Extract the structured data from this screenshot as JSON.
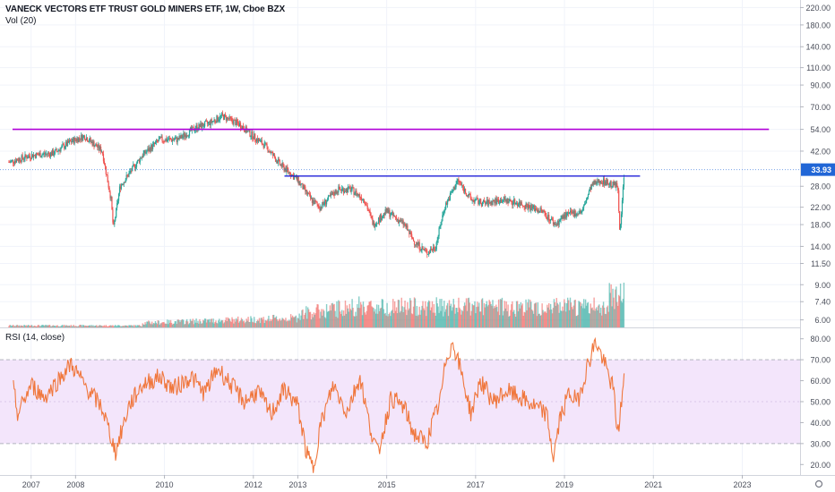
{
  "header": {
    "title": "VANECK VECTORS ETF TRUST GOLD MINERS ETF, 1W, Cboe BZX",
    "volume_label": "Vol (20)"
  },
  "rsi_pane": {
    "label": "RSI (14, close)"
  },
  "last_price": "33.93",
  "colors": {
    "up": "#26a69a",
    "down": "#ef5350",
    "resistance_line": "#b000d8",
    "breakout_line": "#1f1fd8",
    "rsi_line": "#f0773d",
    "rsi_band": "#f3e5fb",
    "price_tag": "#2166d6"
  },
  "price_axis": {
    "scale": "log",
    "ticks": [
      "220.00",
      "180.00",
      "140.00",
      "110.00",
      "90.00",
      "70.00",
      "54.00",
      "42.00",
      "33.93",
      "28.00",
      "22.00",
      "18.00",
      "14.00",
      "11.50",
      "9.00",
      "7.40",
      "6.00"
    ]
  },
  "rsi_axis": {
    "ticks": [
      "80.00",
      "70.00",
      "60.00",
      "50.00",
      "40.00",
      "30.00",
      "20.00"
    ],
    "band": [
      30,
      70
    ]
  },
  "time_axis": {
    "ticks": [
      "2007",
      "2008",
      "2010",
      "2012",
      "2013",
      "2015",
      "2017",
      "2019",
      "2021",
      "2023"
    ]
  },
  "chart_data": [
    {
      "type": "line",
      "title": "",
      "scale": "log",
      "ylim": [
        5.5,
        240
      ],
      "xlim": [
        2006.3,
        2024.3
      ],
      "approx_weekly_close_path": {
        "x": [
          2006.5,
          2007.0,
          2007.5,
          2007.9,
          2008.2,
          2008.6,
          2008.8,
          2008.85,
          2009.0,
          2009.5,
          2009.9,
          2010.3,
          2010.7,
          2011.0,
          2011.3,
          2011.7,
          2011.9,
          2012.3,
          2012.6,
          2012.8,
          2013.0,
          2013.3,
          2013.5,
          2013.9,
          2014.2,
          2014.5,
          2014.7,
          2015.0,
          2015.4,
          2015.6,
          2015.9,
          2016.1,
          2016.3,
          2016.6,
          2016.9,
          2017.2,
          2017.6,
          2018.0,
          2018.5,
          2018.8,
          2019.0,
          2019.4,
          2019.6,
          2019.8,
          2020.0,
          2020.2,
          2020.25,
          2020.35
        ],
        "y": [
          37,
          40,
          41,
          47,
          50,
          42,
          24,
          17,
          28,
          40,
          48,
          48,
          55,
          58,
          63,
          57,
          52,
          44,
          36,
          33,
          30,
          24,
          22,
          27,
          27,
          24,
          18,
          21,
          18,
          15,
          13,
          14,
          22,
          30,
          24,
          23,
          24,
          23,
          21,
          18,
          20,
          21,
          28,
          30,
          29,
          28,
          16,
          35
        ]
      },
      "horizontal_lines": [
        {
          "value": 54,
          "x": [
            2006.3,
            2023.6
          ]
        },
        {
          "value": 31.5,
          "x": [
            2012.7,
            2020.7
          ]
        }
      ]
    },
    {
      "type": "line",
      "title": "",
      "series": [
        {
          "name": "RSI (14, close)"
        }
      ],
      "ylim": [
        15,
        85
      ],
      "x": [
        2006.6,
        2006.7,
        2007.0,
        2007.3,
        2007.6,
        2007.9,
        2008.2,
        2008.6,
        2008.9,
        2009.2,
        2009.5,
        2009.9,
        2010.2,
        2010.6,
        2010.9,
        2011.2,
        2011.5,
        2011.8,
        2012.1,
        2012.4,
        2012.7,
        2013.0,
        2013.2,
        2013.35,
        2013.5,
        2013.8,
        2014.1,
        2014.4,
        2014.6,
        2014.8,
        2015.1,
        2015.4,
        2015.6,
        2015.9,
        2016.0,
        2016.2,
        2016.35,
        2016.5,
        2016.7,
        2016.9,
        2017.1,
        2017.4,
        2017.7,
        2018.0,
        2018.3,
        2018.6,
        2018.75,
        2018.9,
        2019.1,
        2019.3,
        2019.5,
        2019.7,
        2019.9,
        2020.1,
        2020.2,
        2020.35
      ],
      "y": [
        56,
        44,
        58,
        52,
        60,
        68,
        58,
        47,
        26,
        48,
        58,
        62,
        56,
        62,
        54,
        66,
        58,
        50,
        55,
        44,
        56,
        48,
        25,
        18,
        38,
        58,
        45,
        62,
        40,
        25,
        52,
        47,
        35,
        30,
        38,
        50,
        72,
        78,
        62,
        44,
        60,
        50,
        55,
        52,
        48,
        44,
        23,
        42,
        54,
        50,
        66,
        79,
        68,
        56,
        34,
        63
      ]
    }
  ]
}
